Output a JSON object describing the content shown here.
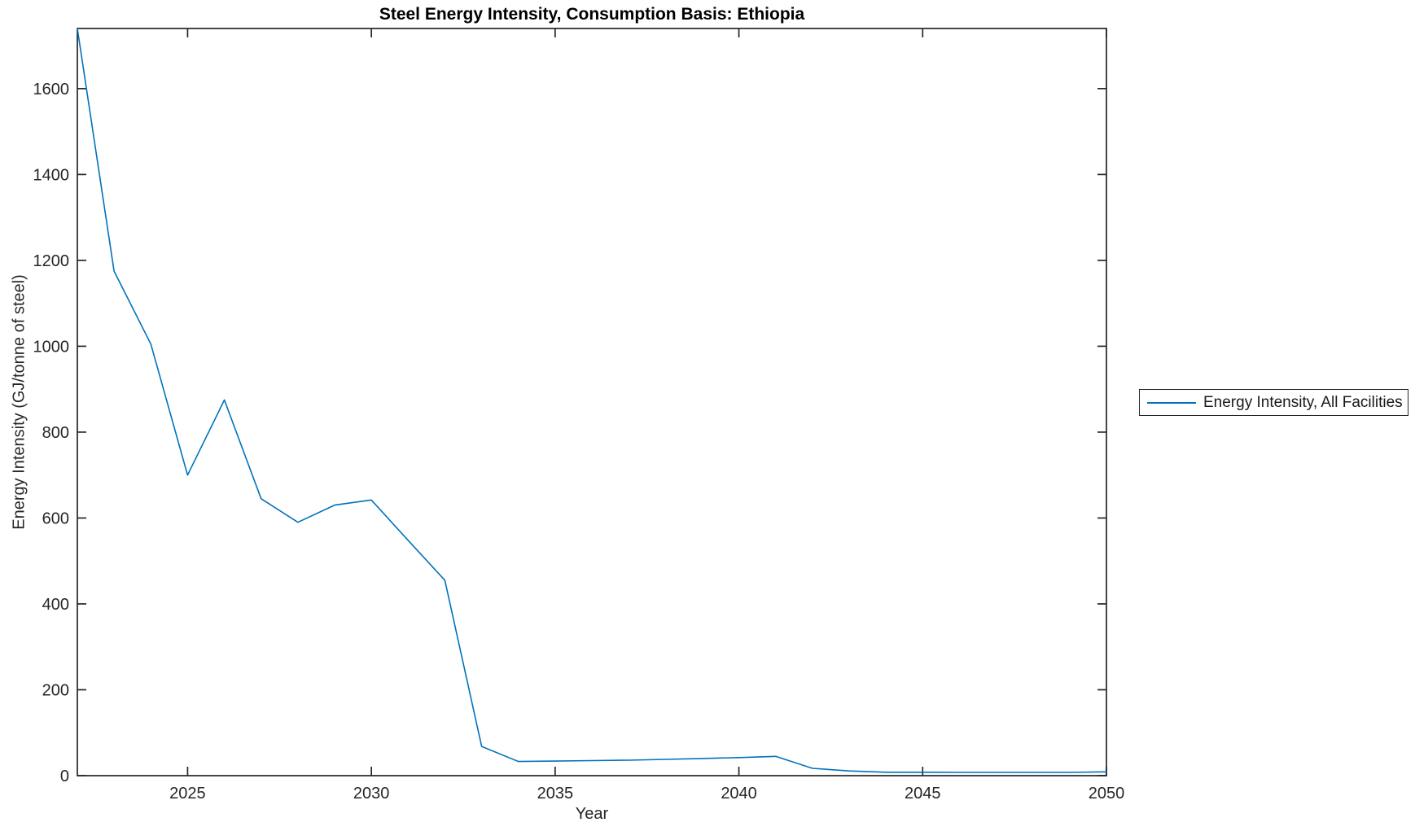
{
  "chart_data": {
    "type": "line",
    "title": "Steel Energy Intensity, Consumption Basis: Ethiopia",
    "xlabel": "Year",
    "ylabel": "Energy Intensity (GJ/tonne of steel)",
    "xlim": [
      2022,
      2050
    ],
    "ylim": [
      0,
      1740
    ],
    "xticks": [
      2025,
      2030,
      2035,
      2040,
      2045,
      2050
    ],
    "yticks": [
      0,
      200,
      400,
      600,
      800,
      1000,
      1200,
      1400,
      1600
    ],
    "grid": false,
    "box": true,
    "legend_position": "right-outside",
    "line_color": "#0072BD",
    "axis_color": "#262626",
    "x": [
      2022,
      2023,
      2024,
      2025,
      2026,
      2027,
      2028,
      2029,
      2030,
      2031,
      2032,
      2033,
      2034,
      2035,
      2036,
      2037,
      2038,
      2039,
      2040,
      2041,
      2042,
      2043,
      2044,
      2045,
      2046,
      2047,
      2048,
      2049,
      2050
    ],
    "series": [
      {
        "name": "Energy Intensity, All Facilities",
        "values": [
          1740,
          1175,
          1005,
          700,
          875,
          645,
          590,
          630,
          642,
          548,
          455,
          68,
          33,
          34,
          35,
          36,
          38,
          40,
          42,
          45,
          17,
          11,
          8,
          8,
          7.5,
          7.5,
          7.5,
          7.5,
          9
        ]
      }
    ]
  }
}
